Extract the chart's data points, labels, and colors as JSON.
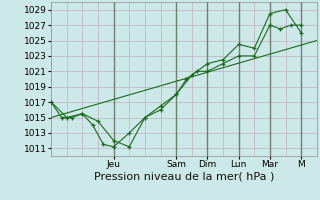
{
  "title": "",
  "xlabel": "Pression niveau de la mer( hPa )",
  "bg_color": "#cce8e8",
  "grid_color": "#c0b0c0",
  "line_color": "#1a6b1a",
  "day_sep_color": "#708070",
  "ylim": [
    1010.0,
    1030.0
  ],
  "xlim": [
    0.0,
    8.5
  ],
  "yticks": [
    1011,
    1013,
    1015,
    1017,
    1019,
    1021,
    1023,
    1025,
    1027,
    1029
  ],
  "day_lines_x": [
    2.0,
    4.0,
    5.0,
    6.0,
    7.0,
    8.0
  ],
  "series1_x": [
    0.0,
    0.33,
    0.67,
    1.0,
    1.33,
    1.67,
    2.0,
    2.5,
    3.0,
    3.5,
    4.0,
    4.33,
    4.67,
    5.0,
    5.5,
    6.0,
    6.5,
    7.0,
    7.33,
    7.67,
    8.0
  ],
  "series1_y": [
    1017,
    1015,
    1015,
    1015.5,
    1014,
    1011.5,
    1011.2,
    1013,
    1015,
    1016.5,
    1018,
    1020,
    1021,
    1021,
    1022,
    1023,
    1023,
    1027,
    1026.5,
    1027,
    1027
  ],
  "series2_x": [
    0.0,
    0.5,
    1.0,
    1.5,
    2.0,
    2.5,
    3.0,
    3.5,
    4.0,
    4.5,
    5.0,
    5.5,
    6.0,
    6.5,
    7.0,
    7.5,
    8.0
  ],
  "series2_y": [
    1017,
    1015,
    1015.5,
    1014.5,
    1012,
    1011.2,
    1015,
    1016,
    1018,
    1020.5,
    1022,
    1022.5,
    1024.5,
    1024,
    1028.5,
    1029,
    1026
  ],
  "series3_x": [
    0.0,
    8.5
  ],
  "series3_y": [
    1015.0,
    1025.0
  ],
  "xtick_positions": [
    2.0,
    4.0,
    5.0,
    6.0,
    7.0,
    8.0
  ],
  "xtick_labels": [
    "Jeu",
    "Sam",
    "Dim",
    "Lun",
    "Mar",
    "M"
  ],
  "fontsize_xlabel": 8,
  "fontsize_ticks": 6.5
}
